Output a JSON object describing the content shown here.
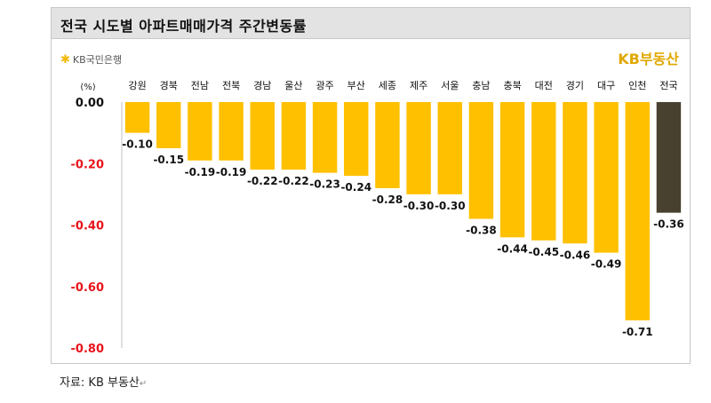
{
  "header": {
    "title": "전국 시도별 아파트매매가격 주간변동률",
    "bank_logo": "KB국민은행",
    "brand": "KB부동산"
  },
  "footer": {
    "source": "자료: KB 부동산"
  },
  "colors": {
    "bar": "#ffc000",
    "bar_national": "#484130",
    "axis_label_negative": "#e8141b"
  },
  "chart_data": {
    "type": "bar",
    "unit": "(%)",
    "categories": [
      "강원",
      "경북",
      "전남",
      "전북",
      "경남",
      "울산",
      "광주",
      "부산",
      "세종",
      "제주",
      "서울",
      "충남",
      "충북",
      "대전",
      "경기",
      "대구",
      "인천",
      "전국"
    ],
    "values": [
      -0.1,
      -0.15,
      -0.19,
      -0.19,
      -0.22,
      -0.22,
      -0.23,
      -0.24,
      -0.28,
      -0.3,
      -0.3,
      -0.38,
      -0.44,
      -0.45,
      -0.46,
      -0.49,
      -0.71,
      -0.36
    ],
    "value_labels": [
      "-0.10",
      "-0.15",
      "-0.19",
      "-0.19",
      "-0.22",
      "-0.22",
      "-0.23",
      "-0.24",
      "-0.28",
      "-0.30",
      "-0.30",
      "-0.38",
      "-0.44",
      "-0.45",
      "-0.46",
      "-0.49",
      "-0.71",
      "-0.36"
    ],
    "yticks": [
      "0.00",
      "-0.20",
      "-0.40",
      "-0.60",
      "-0.80"
    ],
    "ylim": [
      -0.8,
      0
    ],
    "grid": false,
    "legend": "none",
    "highlight_category": "전국"
  }
}
